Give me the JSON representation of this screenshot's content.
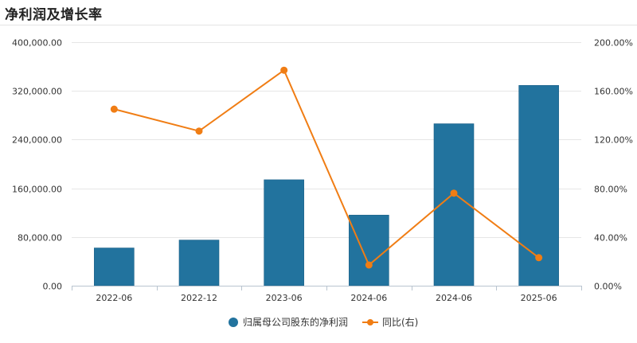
{
  "header": {
    "title": "净利润及增长率"
  },
  "chart_data": {
    "type": "bar",
    "categories": [
      "2022-06",
      "2022-12",
      "2023-06",
      "2024-06",
      "2024-06",
      "2025-06"
    ],
    "series": [
      {
        "name": "归属母公司股东的净利润",
        "type": "bar",
        "axis": "left",
        "color": "#22739e",
        "values": [
          62000,
          75000,
          174000,
          116000,
          266000,
          329000
        ]
      },
      {
        "name": "同比(右)",
        "type": "line",
        "axis": "right",
        "color": "#f07d14",
        "values": [
          145,
          127,
          177,
          17,
          76,
          23
        ]
      }
    ],
    "y_left": {
      "lim": [
        0,
        400000
      ],
      "ticks": [
        0,
        80000,
        160000,
        240000,
        320000,
        400000
      ],
      "tick_labels": [
        "0.00",
        "80,000.00",
        "160,000.00",
        "240,000.00",
        "320,000.00",
        "400,000.00"
      ]
    },
    "y_right": {
      "lim": [
        0,
        200
      ],
      "ticks": [
        0,
        40,
        80,
        120,
        160,
        200
      ],
      "tick_labels": [
        "0.00%",
        "40.00%",
        "80.00%",
        "120.00%",
        "160.00%",
        "200.00%"
      ]
    },
    "grid": true,
    "legend_position": "bottom-center"
  }
}
